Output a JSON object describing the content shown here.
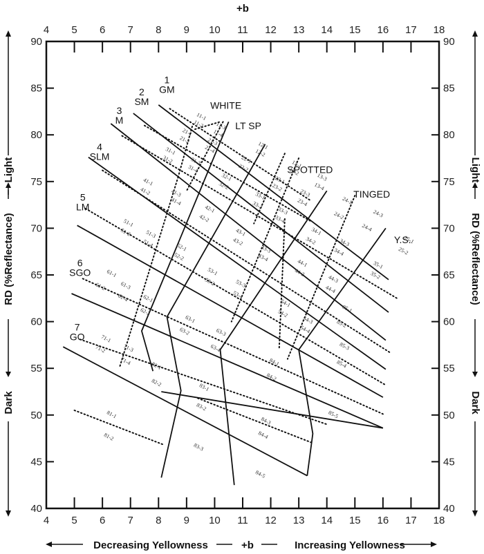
{
  "chart_data": {
    "type": "diagram-grid",
    "title": "",
    "top_axis_title": "+b",
    "xlabel": "Decreasing Yellowness — +b — Increasing Yellowness",
    "xlabel_parts": {
      "left": "Decreasing Yellowness",
      "center": "+b",
      "right": "Increasing Yellowness"
    },
    "ylabel": "RD (%Reflectance)",
    "ylabel_parts": {
      "top": "Light",
      "middle": "RD (%Reflectance)",
      "bottom": "Dark"
    },
    "xlim": [
      4,
      18
    ],
    "ylim": [
      40,
      90
    ],
    "x_ticks": [
      4,
      5,
      6,
      7,
      8,
      9,
      10,
      11,
      12,
      13,
      14,
      15,
      16,
      17,
      18
    ],
    "y_ticks": [
      40,
      45,
      50,
      55,
      60,
      65,
      70,
      75,
      80,
      85,
      90
    ],
    "grid": false,
    "color_groups": [
      {
        "name": "WHITE",
        "x": 10.4,
        "y": 82.8
      },
      {
        "name": "LT SP",
        "x": 11.2,
        "y": 80.6
      },
      {
        "name": "SPOTTED",
        "x": 13.4,
        "y": 75.9
      },
      {
        "name": "TINGED",
        "x": 15.6,
        "y": 73.3
      },
      {
        "name": "Y.S.",
        "x": 16.7,
        "y": 68.4
      }
    ],
    "grade_labels": [
      {
        "number": "1",
        "code": "GM",
        "x": 8.3,
        "y": 84.5
      },
      {
        "number": "2",
        "code": "SM",
        "x": 7.4,
        "y": 83.2
      },
      {
        "number": "3",
        "code": "M",
        "x": 6.6,
        "y": 81.2
      },
      {
        "number": "4",
        "code": "SLM",
        "x": 5.9,
        "y": 77.3
      },
      {
        "number": "5",
        "code": "LM",
        "x": 5.3,
        "y": 71.9
      },
      {
        "number": "6",
        "code": "SGO",
        "x": 5.2,
        "y": 64.9
      },
      {
        "number": "7",
        "code": "GO",
        "x": 5.1,
        "y": 58.0
      }
    ],
    "cell_codes": [
      "11-1",
      "11-2",
      "11-3",
      "11-4",
      "12-1",
      "12-2",
      "13-1",
      "13-2",
      "13-3",
      "13-4",
      "21-1",
      "21-2",
      "21-3",
      "21-4",
      "22-1",
      "22-2",
      "23-1",
      "23-2",
      "23-3",
      "23-4",
      "24-1",
      "24-2",
      "24-3",
      "24-4",
      "25-1",
      "25-2",
      "31-1",
      "31-2",
      "31-3",
      "31-4",
      "32-1",
      "32-2",
      "33-1",
      "33-2",
      "33-3",
      "33-4",
      "34-1",
      "34-2",
      "34-3",
      "34-4",
      "35-1",
      "35-2",
      "41-1",
      "41-2",
      "41-3",
      "41-4",
      "42-1",
      "42-2",
      "43-1",
      "43-2",
      "43-3",
      "43-4",
      "44-1",
      "44-2",
      "44-3",
      "44-4",
      "51-1",
      "51-2",
      "51-3",
      "51-4",
      "52-1",
      "52-2",
      "53-1",
      "53-2",
      "53-3",
      "53-4",
      "54-1",
      "54-2",
      "54-3",
      "54-4",
      "61-1",
      "61-2",
      "61-3",
      "61-4",
      "62-1",
      "62-2",
      "63-1",
      "63-2",
      "63-3",
      "63-4",
      "71-1",
      "71-2",
      "71-3",
      "71-4",
      "81-1",
      "81-2",
      "82-1",
      "82-2",
      "83-1",
      "83-2",
      "83-3",
      "84-1",
      "84-2",
      "84-3",
      "84-4",
      "84-5",
      "85-1",
      "85-2",
      "85-3",
      "85-4",
      "85-5"
    ],
    "cells": [
      {
        "code": "11-1",
        "x": 9.5,
        "y": 81.8,
        "rot": 28
      },
      {
        "code": "11-2",
        "x": 9.4,
        "y": 81.0,
        "rot": 28
      },
      {
        "code": "11-3",
        "x": 10.2,
        "y": 80.8,
        "rot": 28
      },
      {
        "code": "11-4",
        "x": 10.1,
        "y": 80.0,
        "rot": 28
      },
      {
        "code": "21-1",
        "x": 9.0,
        "y": 80.1,
        "rot": 28
      },
      {
        "code": "21-2",
        "x": 8.9,
        "y": 79.3,
        "rot": 28
      },
      {
        "code": "21-3",
        "x": 9.9,
        "y": 79.1,
        "rot": 28
      },
      {
        "code": "21-4",
        "x": 9.8,
        "y": 78.3,
        "rot": 28
      },
      {
        "code": "31-1",
        "x": 8.4,
        "y": 78.1,
        "rot": 28
      },
      {
        "code": "31-2",
        "x": 8.3,
        "y": 77.2,
        "rot": 28
      },
      {
        "code": "31-3",
        "x": 9.3,
        "y": 77.0,
        "rot": 28
      },
      {
        "code": "31-4",
        "x": 9.2,
        "y": 76.2,
        "rot": 28
      },
      {
        "code": "12-1",
        "x": 11.7,
        "y": 78.7,
        "rot": 28
      },
      {
        "code": "12-2",
        "x": 11.6,
        "y": 77.9,
        "rot": 28
      },
      {
        "code": "22-1",
        "x": 11.1,
        "y": 77.2,
        "rot": 28
      },
      {
        "code": "22-2",
        "x": 11.0,
        "y": 76.3,
        "rot": 28
      },
      {
        "code": "32-1",
        "x": 10.4,
        "y": 75.3,
        "rot": 28
      },
      {
        "code": "32-2",
        "x": 10.3,
        "y": 74.4,
        "rot": 28
      },
      {
        "code": "13-1",
        "x": 12.9,
        "y": 76.7,
        "rot": 28
      },
      {
        "code": "13-2",
        "x": 12.8,
        "y": 75.9,
        "rot": 28
      },
      {
        "code": "13-3",
        "x": 13.8,
        "y": 75.3,
        "rot": 28
      },
      {
        "code": "13-4",
        "x": 13.7,
        "y": 74.3,
        "rot": 28
      },
      {
        "code": "23-1",
        "x": 12.3,
        "y": 75.0,
        "rot": 28
      },
      {
        "code": "23-2",
        "x": 12.2,
        "y": 74.2,
        "rot": 28
      },
      {
        "code": "23-3",
        "x": 13.2,
        "y": 73.6,
        "rot": 28
      },
      {
        "code": "23-4",
        "x": 13.1,
        "y": 72.6,
        "rot": 28
      },
      {
        "code": "33-1",
        "x": 11.6,
        "y": 73.3,
        "rot": 28
      },
      {
        "code": "33-2",
        "x": 11.5,
        "y": 72.3,
        "rot": 28
      },
      {
        "code": "33-3",
        "x": 12.4,
        "y": 71.7,
        "rot": 28
      },
      {
        "code": "33-4",
        "x": 12.3,
        "y": 70.8,
        "rot": 28
      },
      {
        "code": "24-1",
        "x": 14.7,
        "y": 72.8,
        "rot": 28
      },
      {
        "code": "24-2",
        "x": 14.4,
        "y": 71.2,
        "rot": 28
      },
      {
        "code": "24-3",
        "x": 15.8,
        "y": 71.4,
        "rot": 28
      },
      {
        "code": "24-4",
        "x": 15.4,
        "y": 69.9,
        "rot": 28
      },
      {
        "code": "25-1",
        "x": 16.9,
        "y": 68.6,
        "rot": 28
      },
      {
        "code": "25-2",
        "x": 16.7,
        "y": 67.4,
        "rot": 28
      },
      {
        "code": "34-1",
        "x": 13.6,
        "y": 69.5,
        "rot": 28
      },
      {
        "code": "34-2",
        "x": 13.4,
        "y": 68.5,
        "rot": 28
      },
      {
        "code": "34-3",
        "x": 14.6,
        "y": 68.3,
        "rot": 28
      },
      {
        "code": "34-4",
        "x": 14.4,
        "y": 67.3,
        "rot": 28
      },
      {
        "code": "35-1",
        "x": 15.8,
        "y": 65.9,
        "rot": 28
      },
      {
        "code": "35-2",
        "x": 15.7,
        "y": 64.8,
        "rot": 28
      },
      {
        "code": "41-1",
        "x": 7.6,
        "y": 74.8,
        "rot": 28
      },
      {
        "code": "41-2",
        "x": 7.5,
        "y": 73.8,
        "rot": 28
      },
      {
        "code": "41-3",
        "x": 8.6,
        "y": 73.6,
        "rot": 28
      },
      {
        "code": "41-4",
        "x": 8.6,
        "y": 72.7,
        "rot": 28
      },
      {
        "code": "42-1",
        "x": 9.8,
        "y": 71.9,
        "rot": 28
      },
      {
        "code": "42-2",
        "x": 9.6,
        "y": 70.9,
        "rot": 28
      },
      {
        "code": "43-1",
        "x": 10.9,
        "y": 69.4,
        "rot": 28
      },
      {
        "code": "43-2",
        "x": 10.8,
        "y": 68.4,
        "rot": 28
      },
      {
        "code": "43-3",
        "x": 11.8,
        "y": 67.6,
        "rot": 28
      },
      {
        "code": "43-4",
        "x": 11.7,
        "y": 66.7,
        "rot": 28
      },
      {
        "code": "44-1",
        "x": 13.1,
        "y": 66.1,
        "rot": 28
      },
      {
        "code": "44-2",
        "x": 13.0,
        "y": 65.1,
        "rot": 28
      },
      {
        "code": "44-3",
        "x": 14.2,
        "y": 64.4,
        "rot": 28
      },
      {
        "code": "44-4",
        "x": 14.1,
        "y": 63.3,
        "rot": 28
      },
      {
        "code": "51-1",
        "x": 6.9,
        "y": 70.4,
        "rot": 28
      },
      {
        "code": "51-2",
        "x": 6.8,
        "y": 69.4,
        "rot": 28
      },
      {
        "code": "51-3",
        "x": 7.7,
        "y": 69.2,
        "rot": 28
      },
      {
        "code": "51-4",
        "x": 7.6,
        "y": 68.2,
        "rot": 28
      },
      {
        "code": "52-1",
        "x": 8.8,
        "y": 67.8,
        "rot": 28
      },
      {
        "code": "52-2",
        "x": 8.7,
        "y": 66.8,
        "rot": 28
      },
      {
        "code": "53-1",
        "x": 9.9,
        "y": 65.2,
        "rot": 28
      },
      {
        "code": "53-2",
        "x": 9.8,
        "y": 64.1,
        "rot": 28
      },
      {
        "code": "53-3",
        "x": 10.9,
        "y": 63.9,
        "rot": 28
      },
      {
        "code": "53-4",
        "x": 10.8,
        "y": 62.7,
        "rot": 28
      },
      {
        "code": "54-1",
        "x": 12.5,
        "y": 61.8,
        "rot": 28
      },
      {
        "code": "54-2",
        "x": 12.4,
        "y": 60.7,
        "rot": 28
      },
      {
        "code": "54-3",
        "x": 13.3,
        "y": 60.0,
        "rot": 28
      },
      {
        "code": "54-4",
        "x": 13.2,
        "y": 59.0,
        "rot": 28
      },
      {
        "code": "61-1",
        "x": 6.3,
        "y": 65.0,
        "rot": 28
      },
      {
        "code": "61-2",
        "x": 5.9,
        "y": 63.6,
        "rot": 28
      },
      {
        "code": "61-3",
        "x": 6.8,
        "y": 63.7,
        "rot": 28
      },
      {
        "code": "61-4",
        "x": 6.7,
        "y": 62.4,
        "rot": 28
      },
      {
        "code": "62-1",
        "x": 7.6,
        "y": 62.3,
        "rot": 28
      },
      {
        "code": "62-2",
        "x": 7.5,
        "y": 60.9,
        "rot": 28
      },
      {
        "code": "63-1",
        "x": 9.1,
        "y": 60.1,
        "rot": 28
      },
      {
        "code": "63-2",
        "x": 8.9,
        "y": 58.8,
        "rot": 28
      },
      {
        "code": "63-3",
        "x": 10.2,
        "y": 58.7,
        "rot": 28
      },
      {
        "code": "63-4",
        "x": 10.0,
        "y": 57.0,
        "rot": 28
      },
      {
        "code": "71-1",
        "x": 6.1,
        "y": 58.0,
        "rot": 28
      },
      {
        "code": "71-2",
        "x": 5.9,
        "y": 56.9,
        "rot": 28
      },
      {
        "code": "71-3",
        "x": 6.9,
        "y": 57.0,
        "rot": 28
      },
      {
        "code": "71-4",
        "x": 6.8,
        "y": 55.6,
        "rot": 28
      },
      {
        "code": "81-1",
        "x": 6.3,
        "y": 49.9,
        "rot": 28
      },
      {
        "code": "81-2",
        "x": 6.2,
        "y": 47.5,
        "rot": 28
      },
      {
        "code": "82-1",
        "x": 7.9,
        "y": 55.1,
        "rot": 28
      },
      {
        "code": "82-2",
        "x": 7.9,
        "y": 53.3,
        "rot": 28
      },
      {
        "code": "83-1",
        "x": 9.6,
        "y": 52.8,
        "rot": 28
      },
      {
        "code": "83-2",
        "x": 9.5,
        "y": 50.7,
        "rot": 28
      },
      {
        "code": "83-3",
        "x": 9.4,
        "y": 46.4,
        "rot": 28
      },
      {
        "code": "84-1",
        "x": 12.1,
        "y": 55.5,
        "rot": 28
      },
      {
        "code": "84-2",
        "x": 12.0,
        "y": 53.9,
        "rot": 28
      },
      {
        "code": "84-3",
        "x": 11.8,
        "y": 49.2,
        "rot": 28
      },
      {
        "code": "84-4",
        "x": 11.7,
        "y": 47.7,
        "rot": 28
      },
      {
        "code": "84-5",
        "x": 11.6,
        "y": 43.5,
        "rot": 28
      },
      {
        "code": "85-1",
        "x": 14.7,
        "y": 61.2,
        "rot": 28
      },
      {
        "code": "85-2",
        "x": 14.5,
        "y": 59.6,
        "rot": 28
      },
      {
        "code": "85-3",
        "x": 14.6,
        "y": 57.2,
        "rot": 28
      },
      {
        "code": "85-4",
        "x": 14.5,
        "y": 55.3,
        "rot": 28
      },
      {
        "code": "85-5",
        "x": 14.2,
        "y": 49.9,
        "rot": 28
      }
    ],
    "solid_grade_lines": [
      [
        [
          8.0,
          83.2
        ],
        [
          16.2,
          64.5
        ]
      ],
      [
        [
          7.1,
          82.3
        ],
        [
          16.2,
          61.0
        ]
      ],
      [
        [
          6.3,
          81.2
        ],
        [
          16.1,
          58.0
        ]
      ],
      [
        [
          5.5,
          77.6
        ],
        [
          16.1,
          54.9
        ]
      ],
      [
        [
          5.1,
          70.3
        ],
        [
          16.0,
          51.9
        ]
      ],
      [
        [
          4.9,
          63.0
        ],
        [
          16.0,
          48.6
        ]
      ],
      [
        [
          4.6,
          57.3
        ],
        [
          13.3,
          43.5
        ]
      ]
    ],
    "solid_grade_lines_lower": [
      [
        [
          8.1,
          52.5
        ],
        [
          16.0,
          48.6
        ]
      ]
    ],
    "solid_color_lines": [
      [
        [
          10.5,
          81.4
        ],
        [
          7.4,
          59.0
        ],
        [
          7.8,
          54.7
        ]
      ],
      [
        [
          11.8,
          79.0
        ],
        [
          8.3,
          60.5
        ],
        [
          8.8,
          52.6
        ],
        [
          8.1,
          43.3
        ]
      ],
      [
        [
          14.0,
          74.0
        ],
        [
          10.2,
          57.0
        ],
        [
          10.7,
          42.5
        ]
      ],
      [
        [
          16.1,
          70.0
        ],
        [
          13.0,
          57.0
        ],
        [
          13.5,
          48.0
        ],
        [
          13.3,
          43.5
        ]
      ]
    ]
  },
  "chart_labels": {
    "top_plus_b": "+b",
    "left_light": "Light",
    "left_rd": "RD (%Reflectance)",
    "left_dark": "Dark",
    "right_light": "Light",
    "right_rd": "RD (%Reflectance)",
    "right_dark": "Dark",
    "bottom_decreasing": "Decreasing Yellowness",
    "bottom_plus_b": "+b",
    "bottom_increasing": "Increasing Yellowness"
  },
  "colors": {
    "line": "#111111",
    "text": "#222222",
    "background": "#ffffff"
  }
}
